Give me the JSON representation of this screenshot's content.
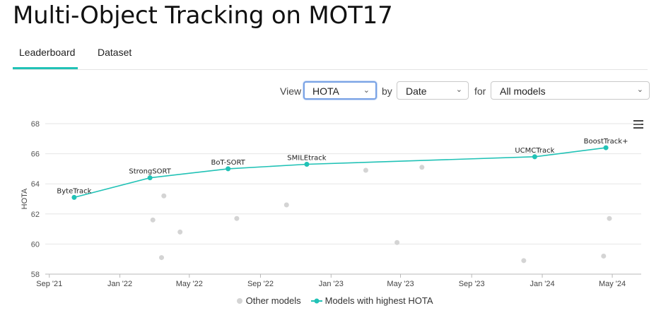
{
  "title": "Multi-Object Tracking on MOT17",
  "tabs": [
    {
      "label": "Leaderboard",
      "active": true
    },
    {
      "label": "Dataset",
      "active": false
    }
  ],
  "controls": {
    "view_label": "View",
    "view_value": "HOTA",
    "by_label": "by",
    "by_value": "Date",
    "for_label": "for",
    "for_value": "All models"
  },
  "legend": {
    "other": "Other models",
    "best": "Models with highest HOTA"
  },
  "colors": {
    "accent": "#21c2b6",
    "other_points": "#d4d4d4"
  },
  "chart_data": {
    "type": "scatter",
    "ylabel": "HOTA",
    "ylim": [
      58,
      68
    ],
    "yticks": [
      58,
      60,
      62,
      64,
      66,
      68
    ],
    "xlim": [
      "2021-08-25",
      "2024-06-20"
    ],
    "xticks": [
      {
        "date": "2021-09-01",
        "label": "Sep '21"
      },
      {
        "date": "2022-01-01",
        "label": "Jan '22"
      },
      {
        "date": "2022-05-01",
        "label": "May '22"
      },
      {
        "date": "2022-09-01",
        "label": "Sep '22"
      },
      {
        "date": "2023-01-01",
        "label": "Jan '23"
      },
      {
        "date": "2023-05-01",
        "label": "May '23"
      },
      {
        "date": "2023-09-01",
        "label": "Sep '23"
      },
      {
        "date": "2024-01-01",
        "label": "Jan '24"
      },
      {
        "date": "2024-05-01",
        "label": "May '24"
      }
    ],
    "series": [
      {
        "name": "Models with highest HOTA",
        "points": [
          {
            "date": "2021-10-14",
            "value": 63.1,
            "label": "ByteTrack"
          },
          {
            "date": "2022-02-22",
            "value": 64.4,
            "label": "StrongSORT"
          },
          {
            "date": "2022-07-07",
            "value": 65.0,
            "label": "BoT-SORT"
          },
          {
            "date": "2022-11-20",
            "value": 65.3,
            "label": "SMILEtrack"
          },
          {
            "date": "2023-12-19",
            "value": 65.8,
            "label": "UCMCTrack"
          },
          {
            "date": "2024-04-20",
            "value": 66.4,
            "label": "BoostTrack+"
          }
        ]
      },
      {
        "name": "Other models",
        "points": [
          {
            "date": "2022-02-27",
            "value": 61.6
          },
          {
            "date": "2022-03-18",
            "value": 63.2
          },
          {
            "date": "2022-03-14",
            "value": 59.1
          },
          {
            "date": "2022-04-15",
            "value": 60.8
          },
          {
            "date": "2022-07-22",
            "value": 61.7
          },
          {
            "date": "2022-10-16",
            "value": 62.6
          },
          {
            "date": "2023-03-02",
            "value": 64.9
          },
          {
            "date": "2023-04-25",
            "value": 60.1
          },
          {
            "date": "2023-06-07",
            "value": 65.1
          },
          {
            "date": "2023-11-30",
            "value": 58.9
          },
          {
            "date": "2024-04-16",
            "value": 59.2
          },
          {
            "date": "2024-04-26",
            "value": 61.7
          }
        ]
      }
    ]
  }
}
